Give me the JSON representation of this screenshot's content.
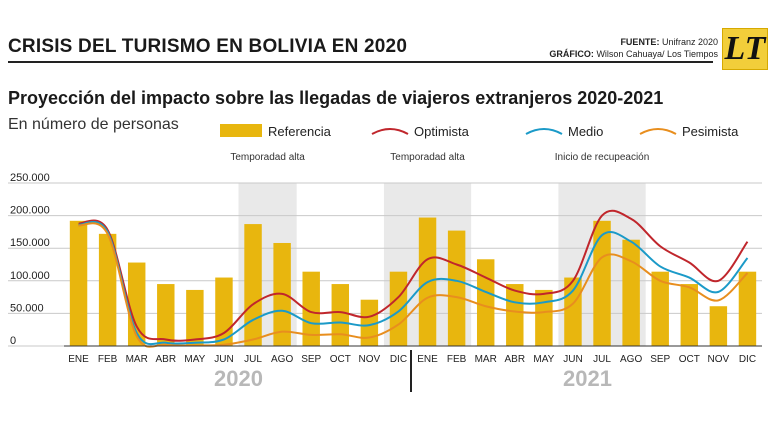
{
  "header": {
    "title": "CRISIS DEL TURISMO EN BOLIVIA EN 2020",
    "source_label": "FUENTE:",
    "source_value": "Unifranz 2020",
    "graphic_label": "GRÁFICO:",
    "graphic_value": "Wilson Cahuaya/ Los Tiempos",
    "logo_text": "LT"
  },
  "colors": {
    "referencia": "#e8b60e",
    "optimista": "#c0262c",
    "medio": "#1b9ac8",
    "pesimista": "#e88e1e",
    "shade": "#e9e9e9"
  },
  "chart_data": {
    "type": "bar",
    "title": "Proyección del impacto sobre las llegadas de viajeros extranjeros 2020-2021",
    "subtitle": "En número de personas",
    "categories": [
      "ENE",
      "FEB",
      "MAR",
      "ABR",
      "MAY",
      "JUN",
      "JUL",
      "AGO",
      "SEP",
      "OCT",
      "NOV",
      "DIC",
      "ENE",
      "FEB",
      "MAR",
      "ABR",
      "MAY",
      "JUN",
      "JUL",
      "AGO",
      "SEP",
      "OCT",
      "NOV",
      "DIC"
    ],
    "year_labels": [
      "2020",
      "2021"
    ],
    "y_ticks": [
      "250.000",
      "200.000",
      "150.000",
      "100.000",
      "50.000",
      "0"
    ],
    "ylim": [
      0,
      250000
    ],
    "grid": true,
    "legend_position": "top",
    "series": [
      {
        "name": "Referencia",
        "kind": "bar",
        "values": [
          192000,
          172000,
          128000,
          95000,
          86000,
          105000,
          187000,
          158000,
          114000,
          95000,
          71000,
          114000,
          197000,
          177000,
          133000,
          95000,
          86000,
          105000,
          192000,
          163000,
          114000,
          95000,
          61000,
          114000
        ]
      },
      {
        "name": "Optimista",
        "kind": "line",
        "values": [
          188000,
          178000,
          30000,
          10000,
          10000,
          20000,
          64000,
          80000,
          52000,
          52000,
          45000,
          75000,
          133000,
          125000,
          105000,
          85000,
          80000,
          100000,
          200000,
          195000,
          153000,
          128000,
          100000,
          160000
        ]
      },
      {
        "name": "Medio",
        "kind": "line",
        "values": [
          186000,
          175000,
          20000,
          5000,
          5000,
          10000,
          40000,
          54000,
          35000,
          36000,
          32000,
          53000,
          98000,
          100000,
          83000,
          67000,
          67000,
          85000,
          170000,
          160000,
          122000,
          105000,
          83000,
          135000
        ]
      },
      {
        "name": "Pesimista",
        "kind": "line",
        "values": [
          185000,
          172000,
          15000,
          2000,
          1000,
          2000,
          10000,
          22000,
          17000,
          18000,
          13000,
          33000,
          74000,
          75000,
          61000,
          53000,
          52000,
          65000,
          136000,
          130000,
          100000,
          90000,
          70000,
          112000
        ]
      }
    ],
    "annotations": [
      {
        "text": "Temporadad alta",
        "shade_from": 6,
        "shade_to": 7
      },
      {
        "text": "Temporadad alta",
        "shade_from": 11,
        "shade_to": 13
      },
      {
        "text": "Inicio de recupeación",
        "shade_from": 17,
        "shade_to": 19
      }
    ]
  }
}
